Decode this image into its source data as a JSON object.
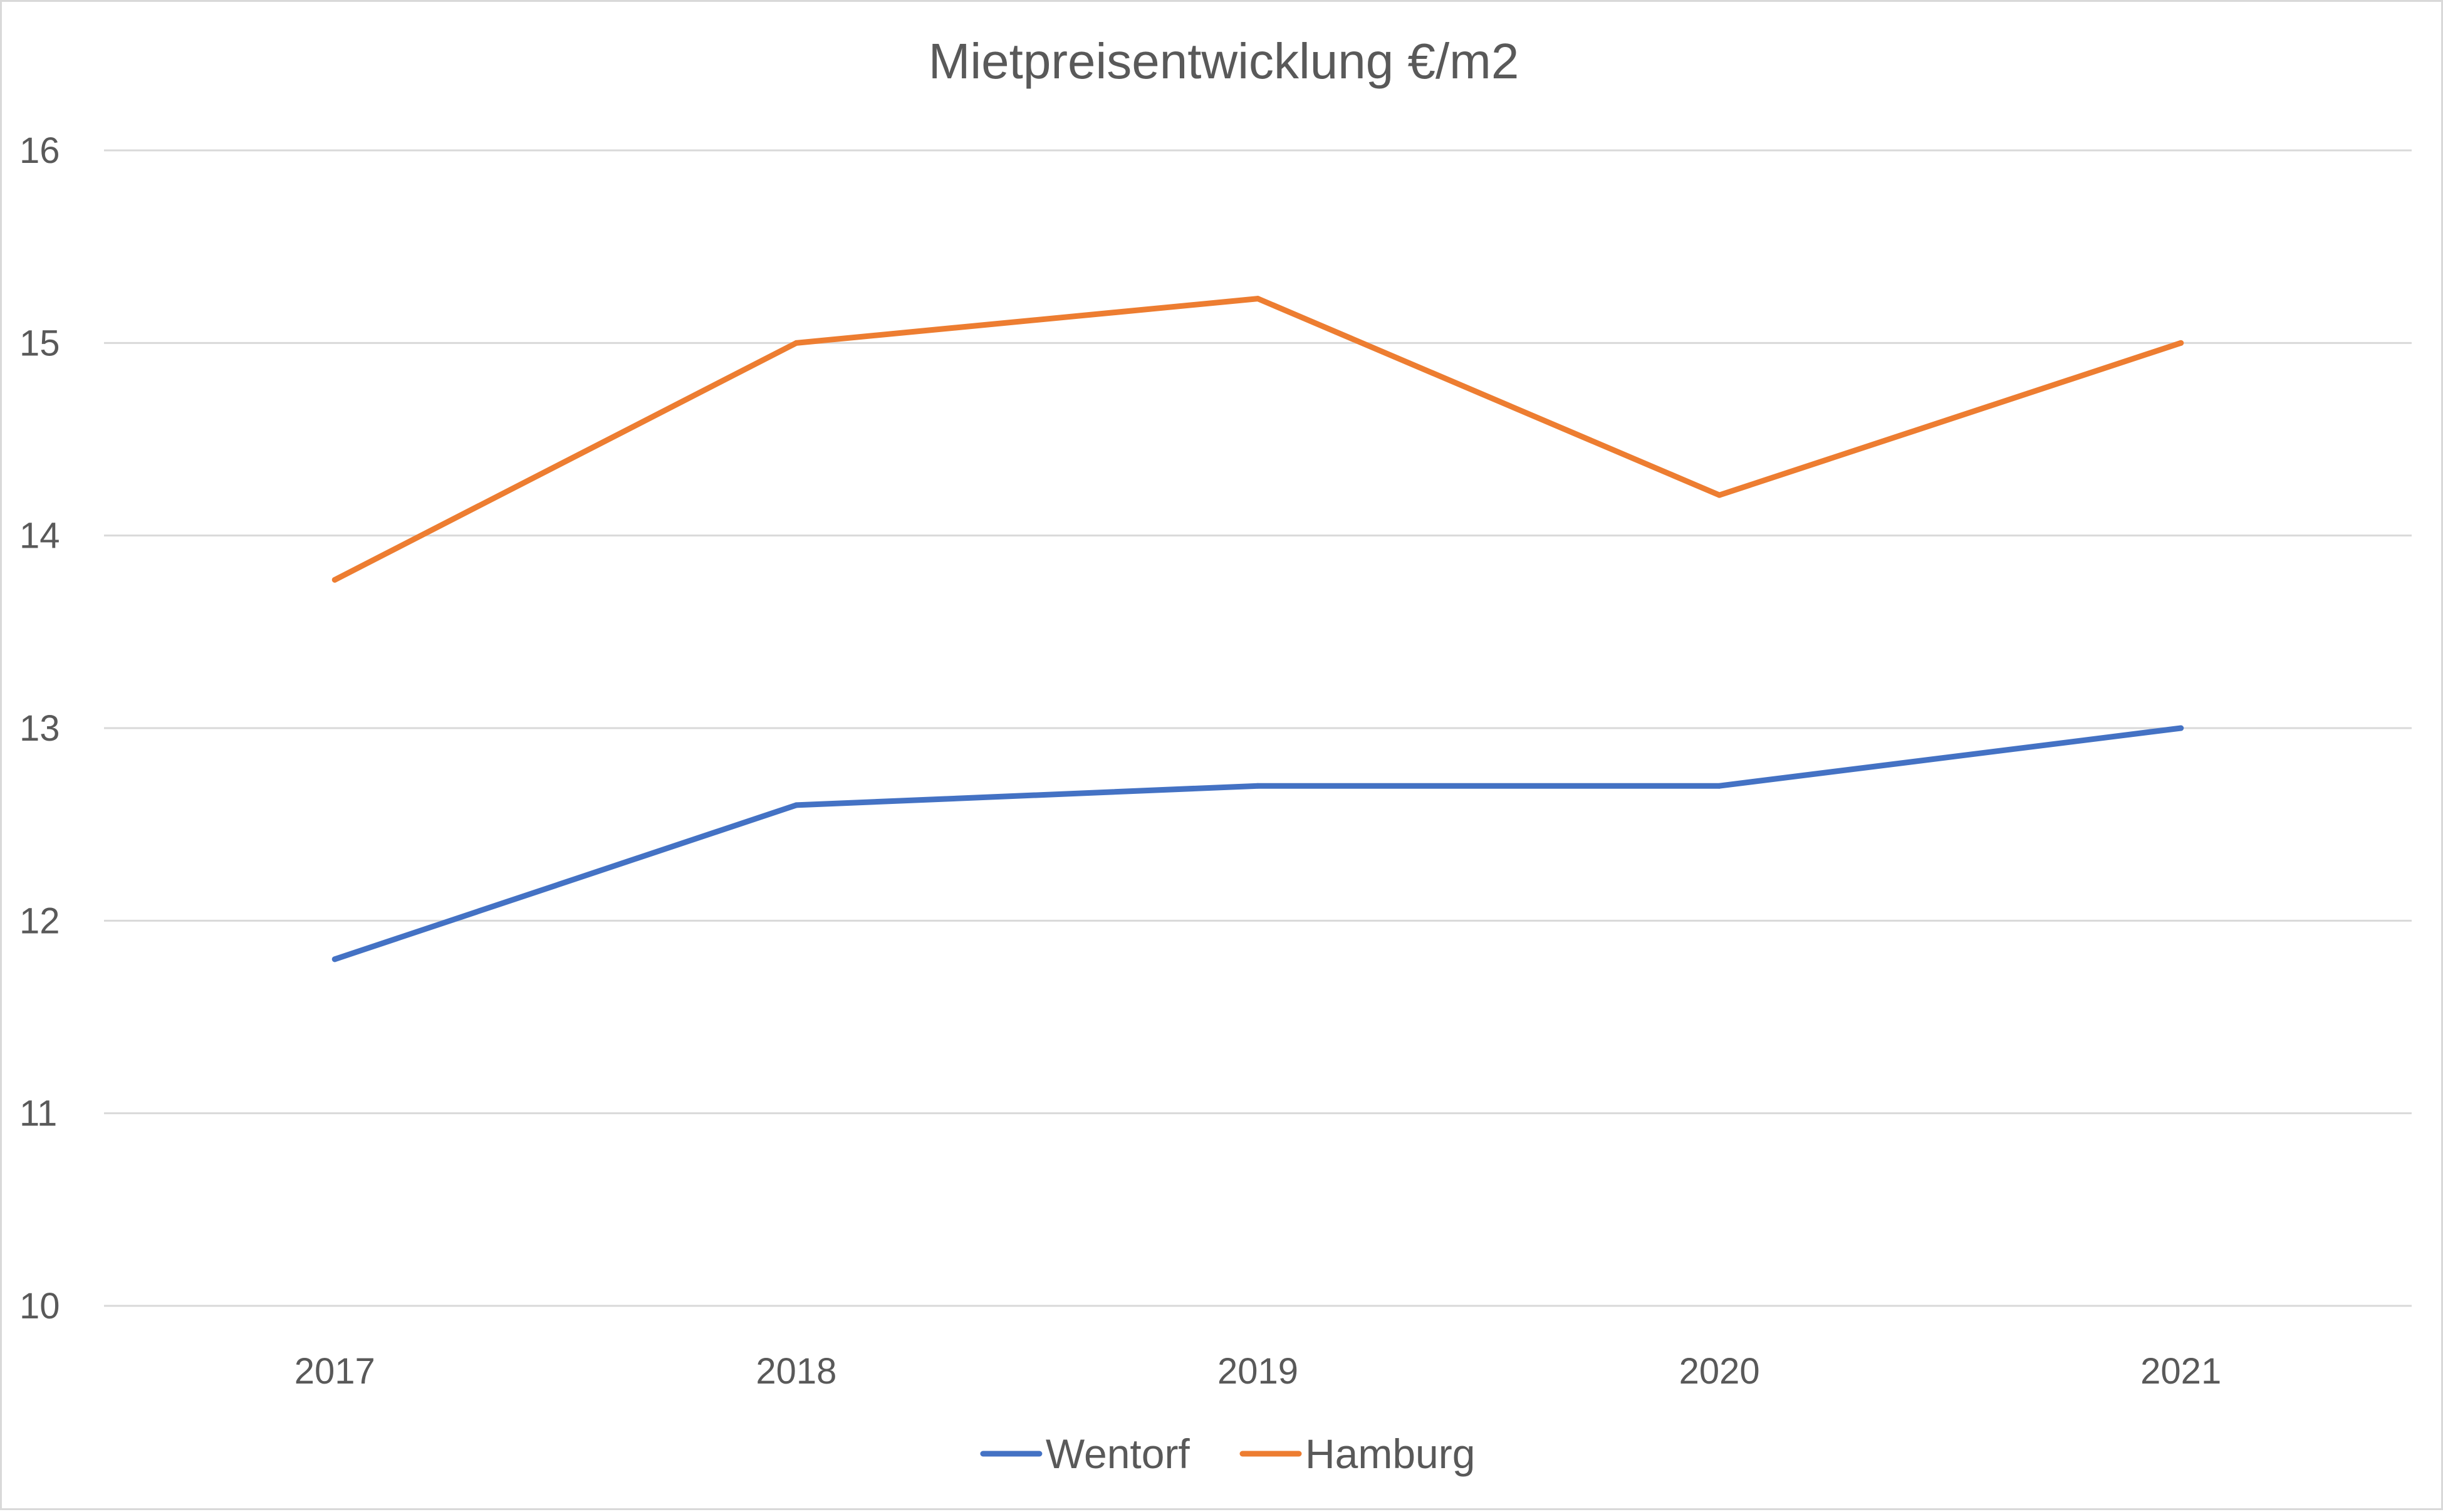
{
  "chart_data": {
    "type": "line",
    "title": "Mietpreisentwicklung  €/m2",
    "xlabel": "",
    "ylabel": "",
    "categories": [
      "2017",
      "2018",
      "2019",
      "2020",
      "2021"
    ],
    "series": [
      {
        "name": "Wentorf",
        "color": "#4472c4",
        "values": [
          11.8,
          12.6,
          12.7,
          12.7,
          13.0
        ]
      },
      {
        "name": "Hamburg",
        "color": "#ed7d31",
        "values": [
          13.77,
          15.0,
          15.23,
          14.21,
          15.0
        ]
      }
    ],
    "ylim": [
      10,
      16
    ],
    "yticks": [
      "10",
      "11",
      "12",
      "13",
      "14",
      "15",
      "16"
    ],
    "grid": true,
    "legend_position": "bottom",
    "colors": {
      "grid": "#d9d9d9",
      "text": "#595959",
      "border": "#d9d9d9"
    }
  }
}
